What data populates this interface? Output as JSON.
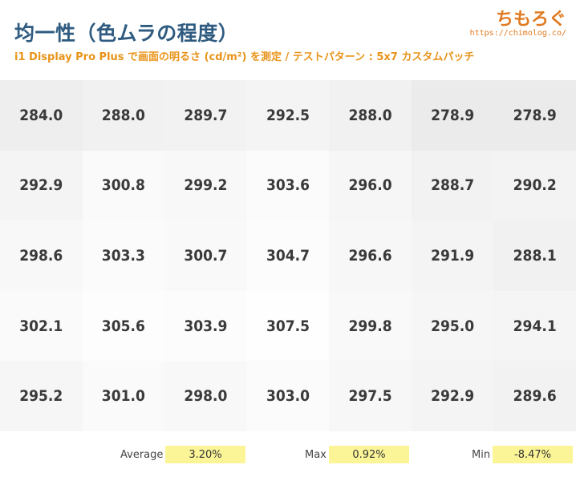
{
  "header": {
    "title": "均一性（色ムラの程度）",
    "subtitle": "i1 Display Pro Plus で画面の明るさ (cd/m²) を測定 / テストパターン : 5x7 カスタムパッチ"
  },
  "brand": {
    "name": "ちもろぐ",
    "url": "https://chimolog.co/"
  },
  "chart_data": {
    "type": "heatmap",
    "rows": 5,
    "cols": 7,
    "values": [
      [
        "284.0",
        "288.0",
        "289.7",
        "292.5",
        "288.0",
        "278.9",
        "278.9"
      ],
      [
        "292.9",
        "300.8",
        "299.2",
        "303.6",
        "296.0",
        "288.7",
        "290.2"
      ],
      [
        "298.6",
        "303.3",
        "300.7",
        "304.7",
        "296.6",
        "291.9",
        "288.1"
      ],
      [
        "302.1",
        "305.6",
        "303.9",
        "307.5",
        "299.8",
        "295.0",
        "294.1"
      ],
      [
        "295.2",
        "301.0",
        "298.0",
        "303.0",
        "297.5",
        "292.9",
        "289.6"
      ]
    ],
    "colors": {
      "low": "#ebebeb",
      "high": "#fefefe",
      "text": "#3a3a3a"
    }
  },
  "stats": {
    "average": {
      "label": "Average",
      "value": "3.20%"
    },
    "max": {
      "label": "Max",
      "value": "0.92%"
    },
    "min": {
      "label": "Min",
      "value": "-8.47%"
    },
    "highlight_color": "#fbf597"
  }
}
